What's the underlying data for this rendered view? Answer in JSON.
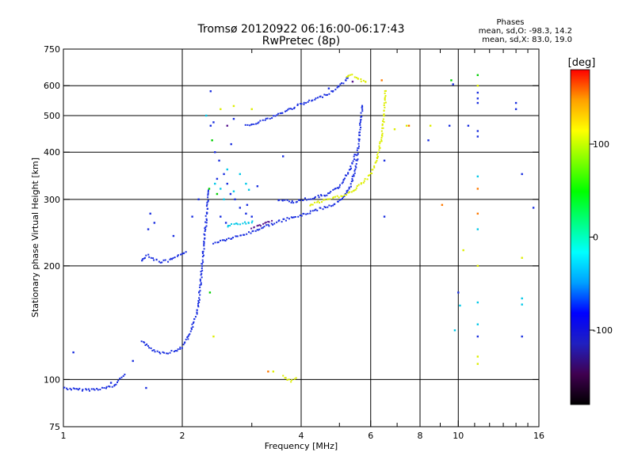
{
  "chart_data": {
    "type": "scatter",
    "title": "Tromsø 20120922 06:16:00-06:17:43",
    "subtitle": "RwPretec (8p)",
    "stats": {
      "heading": "Phases",
      "line_o": "mean, sd,O: -98.3, 14.2",
      "line_x": "mean, sd,X: 83.0, 19.0"
    },
    "xlabel": "Frequency [MHz]",
    "ylabel": "Stationary phase Virtual Height [km]",
    "xscale": "log",
    "yscale": "log",
    "xlim": [
      1,
      16
    ],
    "ylim": [
      75,
      750
    ],
    "grid": true,
    "x_ticks": [
      1,
      2,
      4,
      6,
      8,
      10,
      16
    ],
    "x_grid": [
      2,
      4,
      6,
      8,
      10
    ],
    "x_minor": [
      3,
      5,
      7,
      9,
      11,
      12,
      13,
      14,
      15
    ],
    "y_ticks": [
      75,
      100,
      200,
      300,
      400,
      500,
      600,
      750
    ],
    "y_grid": [
      100,
      200,
      300,
      400,
      500,
      600
    ],
    "colorbar": {
      "label": "[deg]",
      "range": [
        -180,
        180
      ],
      "ticks": [
        100,
        0,
        -100
      ],
      "stops": [
        "#000000",
        "#400050",
        "#2020c0",
        "#0000ff",
        "#00a0ff",
        "#00ffff",
        "#00ff80",
        "#00ff00",
        "#80ff00",
        "#ffff00",
        "#ffa000",
        "#ff0000"
      ]
    },
    "series": [
      {
        "color": "#1a2fe0",
        "traces": [
          [
            [
              1.0,
              95
            ],
            [
              1.08,
              94
            ],
            [
              1.18,
              94
            ],
            [
              1.28,
              95
            ],
            [
              1.34,
              96
            ],
            [
              1.38,
              99
            ],
            [
              1.4,
              102
            ],
            [
              1.44,
              104
            ]
          ],
          [
            [
              1.58,
              205
            ],
            [
              1.6,
              210
            ],
            [
              1.64,
              214
            ],
            [
              1.7,
              208
            ],
            [
              1.76,
              205
            ],
            [
              1.84,
              206
            ],
            [
              1.92,
              210
            ],
            [
              2.0,
              214
            ],
            [
              2.06,
              220
            ]
          ],
          [
            [
              1.58,
              127
            ],
            [
              1.62,
              124
            ],
            [
              1.68,
              120
            ],
            [
              1.76,
              118
            ],
            [
              1.84,
              118
            ],
            [
              1.92,
              119
            ],
            [
              2.0,
              122
            ],
            [
              2.06,
              128
            ],
            [
              2.1,
              134
            ],
            [
              2.14,
              142
            ],
            [
              2.18,
              150
            ],
            [
              2.2,
              160
            ],
            [
              2.22,
              175
            ],
            [
              2.24,
              195
            ],
            [
              2.26,
              215
            ],
            [
              2.28,
              240
            ],
            [
              2.3,
              265
            ],
            [
              2.32,
              290
            ],
            [
              2.34,
              320
            ]
          ],
          [
            [
              2.4,
              230
            ],
            [
              2.6,
              235
            ],
            [
              2.8,
              240
            ],
            [
              3.0,
              246
            ],
            [
              3.3,
              256
            ],
            [
              3.6,
              264
            ],
            [
              4.0,
              272
            ],
            [
              4.4,
              282
            ],
            [
              4.8,
              290
            ],
            [
              5.1,
              300
            ],
            [
              5.3,
              320
            ],
            [
              5.45,
              350
            ],
            [
              5.55,
              390
            ],
            [
              5.62,
              440
            ],
            [
              5.68,
              500
            ],
            [
              5.72,
              540
            ]
          ],
          [
            [
              2.9,
              470
            ],
            [
              3.1,
              480
            ],
            [
              3.3,
              490
            ],
            [
              3.6,
              510
            ],
            [
              3.9,
              530
            ],
            [
              4.2,
              545
            ],
            [
              4.5,
              560
            ],
            [
              4.8,
              580
            ],
            [
              5.0,
              600
            ],
            [
              5.2,
              620
            ],
            [
              5.3,
              640
            ]
          ],
          [
            [
              3.5,
              300
            ],
            [
              3.8,
              295
            ],
            [
              4.1,
              300
            ],
            [
              4.4,
              305
            ],
            [
              4.7,
              310
            ],
            [
              5.0,
              325
            ],
            [
              5.2,
              345
            ],
            [
              5.4,
              375
            ],
            [
              5.5,
              400
            ]
          ]
        ],
        "points": [
          [
            1.06,
            118
          ],
          [
            1.32,
            98
          ],
          [
            1.5,
            112
          ],
          [
            1.62,
            95
          ],
          [
            1.7,
            260
          ],
          [
            1.66,
            275
          ],
          [
            1.64,
            250
          ],
          [
            1.9,
            240
          ],
          [
            2.12,
            270
          ],
          [
            2.2,
            300
          ],
          [
            2.36,
            580
          ],
          [
            2.36,
            470
          ],
          [
            2.4,
            480
          ],
          [
            2.42,
            400
          ],
          [
            2.48,
            380
          ],
          [
            2.55,
            350
          ],
          [
            2.6,
            330
          ],
          [
            2.65,
            310
          ],
          [
            2.72,
            300
          ],
          [
            2.8,
            285
          ],
          [
            2.9,
            275
          ],
          [
            3.0,
            270
          ],
          [
            2.5,
            270
          ],
          [
            2.58,
            260
          ],
          [
            2.45,
            340
          ],
          [
            3.6,
            390
          ],
          [
            3.1,
            325
          ],
          [
            2.7,
            490
          ],
          [
            2.92,
            290
          ],
          [
            2.66,
            420
          ],
          [
            4.7,
            590
          ],
          [
            6.5,
            380
          ],
          [
            6.5,
            270
          ],
          [
            8.4,
            430
          ],
          [
            9.5,
            470
          ],
          [
            9.7,
            605
          ],
          [
            10.6,
            470
          ],
          [
            11.2,
            440
          ],
          [
            11.2,
            455
          ],
          [
            11.2,
            540
          ],
          [
            11.2,
            555
          ],
          [
            11.2,
            575
          ],
          [
            14.0,
            540
          ],
          [
            14.0,
            520
          ],
          [
            14.5,
            350
          ],
          [
            15.5,
            285
          ],
          [
            14.5,
            130
          ],
          [
            11.2,
            130
          ],
          [
            10.0,
            170
          ]
        ]
      },
      {
        "color": "#00c8e8",
        "traces": [
          [
            [
              2.6,
              255
            ],
            [
              2.75,
              258
            ],
            [
              2.9,
              260
            ],
            [
              3.05,
              262
            ]
          ]
        ],
        "points": [
          [
            2.3,
            500
          ],
          [
            2.42,
            330
          ],
          [
            2.5,
            320
          ],
          [
            2.7,
            315
          ],
          [
            2.55,
            300
          ],
          [
            2.9,
            330
          ],
          [
            2.95,
            318
          ],
          [
            2.8,
            350
          ],
          [
            2.6,
            360
          ],
          [
            11.2,
            345
          ],
          [
            11.2,
            250
          ],
          [
            11.2,
            140
          ],
          [
            9.8,
            135
          ],
          [
            14.5,
            158
          ],
          [
            14.5,
            164
          ],
          [
            11.2,
            160
          ],
          [
            10.1,
            157
          ]
        ]
      },
      {
        "color": "#00d000",
        "traces": [],
        "points": [
          [
            2.34,
            320
          ],
          [
            2.38,
            430
          ],
          [
            2.45,
            310
          ],
          [
            2.35,
            170
          ],
          [
            9.6,
            620
          ],
          [
            11.2,
            640
          ]
        ]
      },
      {
        "color": "#ddee00",
        "traces": [
          [
            [
              3.6,
              102
            ],
            [
              3.68,
              100
            ],
            [
              3.76,
              99
            ],
            [
              3.84,
              100
            ],
            [
              3.9,
              101
            ]
          ],
          [
            [
              4.2,
              290
            ],
            [
              4.6,
              298
            ],
            [
              5.0,
              305
            ],
            [
              5.4,
              315
            ],
            [
              5.7,
              330
            ],
            [
              6.0,
              350
            ],
            [
              6.2,
              380
            ],
            [
              6.35,
              420
            ],
            [
              6.45,
              470
            ],
            [
              6.52,
              530
            ],
            [
              6.55,
              590
            ]
          ],
          [
            [
              5.2,
              630
            ],
            [
              5.4,
              640
            ],
            [
              5.6,
              625
            ],
            [
              5.75,
              615
            ],
            [
              5.9,
              620
            ]
          ]
        ],
        "points": [
          [
            2.5,
            520
          ],
          [
            2.7,
            530
          ],
          [
            3.0,
            520
          ],
          [
            3.4,
            105
          ],
          [
            6.9,
            460
          ],
          [
            7.4,
            470
          ],
          [
            8.5,
            470
          ],
          [
            11.2,
            600
          ],
          [
            11.2,
            200
          ],
          [
            11.2,
            110
          ],
          [
            11.2,
            115
          ],
          [
            10.3,
            220
          ],
          [
            14.5,
            210
          ],
          [
            2.4,
            130
          ]
        ]
      },
      {
        "color": "#ff7a00",
        "traces": [],
        "points": [
          [
            6.4,
            620
          ],
          [
            7.5,
            470
          ],
          [
            11.2,
            320
          ],
          [
            11.2,
            275
          ],
          [
            9.1,
            290
          ],
          [
            3.3,
            105
          ]
        ]
      },
      {
        "color": "#5a1890",
        "traces": [
          [
            [
              3.0,
              250
            ],
            [
              3.2,
              258
            ],
            [
              3.4,
              264
            ]
          ]
        ],
        "points": [
          [
            5.4,
            615
          ],
          [
            2.6,
            470
          ]
        ]
      }
    ]
  }
}
